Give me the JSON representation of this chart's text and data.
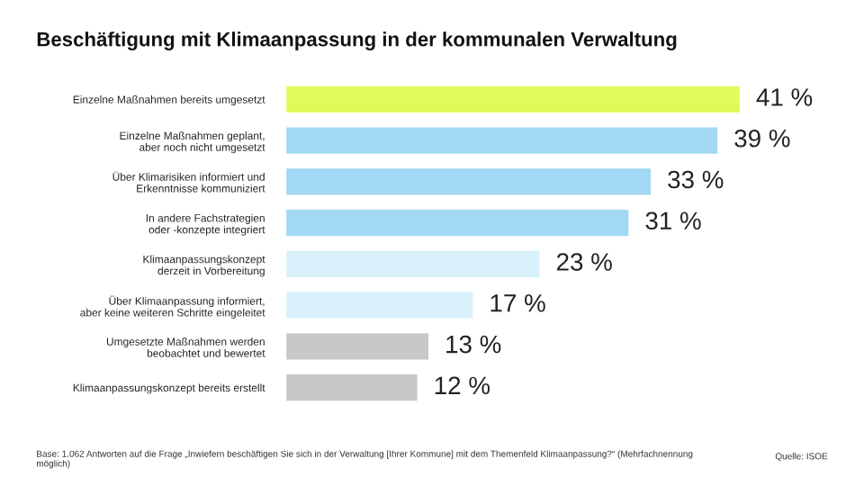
{
  "chart_data": {
    "type": "bar",
    "orientation": "horizontal",
    "title": "Beschäftigung mit Klimaanpassung in der kommunalen Verwaltung",
    "categories": [
      "Einzelne Maßnahmen bereits umgesetzt",
      "Einzelne Maßnahmen geplant,\naber noch nicht umgesetzt",
      "Über Klimarisiken informiert und\nErkenntnisse kommuniziert",
      "In andere Fachstrategien\noder -konzepte integriert",
      "Klimaanpassungskonzept\nderzeit in Vorbereitung",
      "Über Klimaanpassung informiert,\naber keine weiteren Schritte eingeleitet",
      "Umgesetzte Maßnahmen werden\nbeobachtet und bewertet",
      "Klimaanpassungskonzept bereits erstellt"
    ],
    "values": [
      41,
      39,
      33,
      31,
      23,
      17,
      13,
      12
    ],
    "value_labels": [
      "41 %",
      "39 %",
      "33 %",
      "31 %",
      "23 %",
      "17 %",
      "13 %",
      "12 %"
    ],
    "colors": [
      "#e0fa5a",
      "#a2d8f3",
      "#a2d8f3",
      "#a2d8f3",
      "#d8f1fb",
      "#d8f1fb",
      "#c8c8c8",
      "#c8c8c8"
    ],
    "tick_labels": "y",
    "grid": false,
    "legend": false,
    "annotations": [
      "Base: 1.062 Antworten auf die Frage „Inwiefern beschäftigen Sie sich in der Verwaltung [Ihrer Kommune] mit dem Themenfeld Klimaanpassung?“ (Mehrfachnennung möglich)",
      "Quelle: ISOE"
    ]
  }
}
